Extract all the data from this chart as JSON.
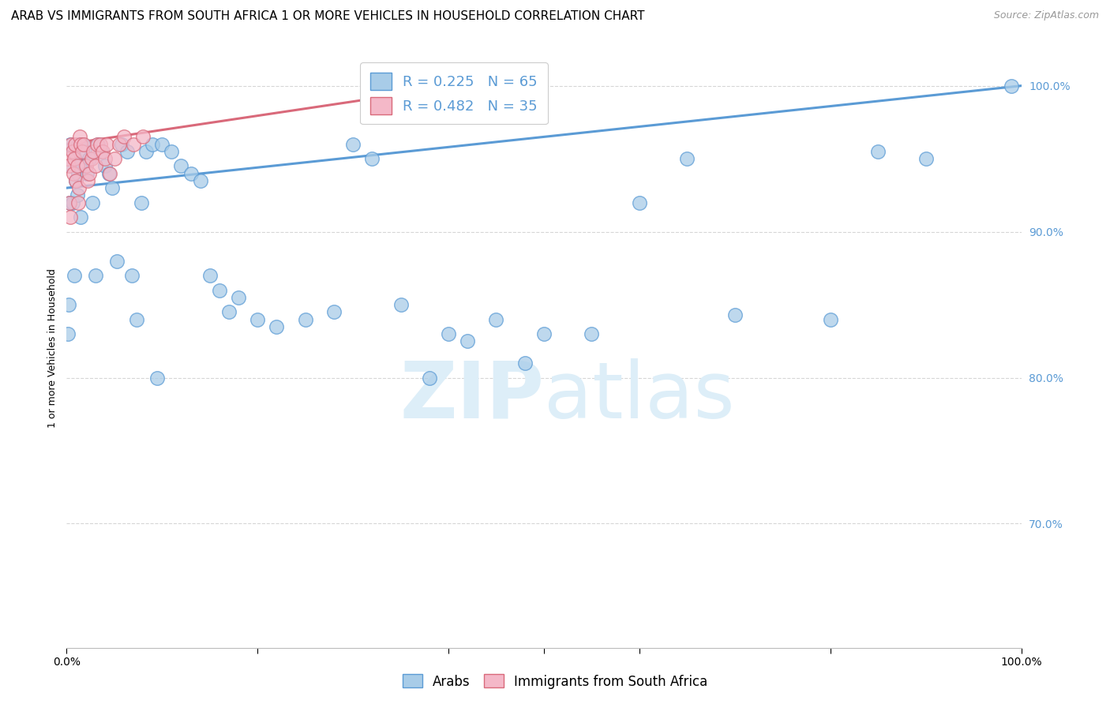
{
  "title": "ARAB VS IMMIGRANTS FROM SOUTH AFRICA 1 OR MORE VEHICLES IN HOUSEHOLD CORRELATION CHART",
  "source": "Source: ZipAtlas.com",
  "ylabel": "1 or more Vehicles in Household",
  "xlim": [
    0.0,
    1.0
  ],
  "ylim": [
    0.615,
    1.025
  ],
  "yticks": [
    0.7,
    0.8,
    0.9,
    1.0
  ],
  "ytick_labels": [
    "70.0%",
    "80.0%",
    "90.0%",
    "100.0%"
  ],
  "legend_blue_r": "R = 0.225",
  "legend_blue_n": "N = 65",
  "legend_pink_r": "R = 0.482",
  "legend_pink_n": "N = 35",
  "blue_color": "#a8cce8",
  "pink_color": "#f4b8c8",
  "line_blue": "#5b9bd5",
  "line_pink": "#d9697a",
  "watermark_color": "#ddeef8",
  "blue_line_start_y": 0.93,
  "blue_line_end_y": 1.0,
  "pink_line_start_y": 0.96,
  "pink_line_end_x": 0.38,
  "pink_line_end_y": 0.997,
  "grid_color": "#cccccc",
  "background_color": "#ffffff",
  "title_fontsize": 11,
  "axis_label_fontsize": 9,
  "tick_fontsize": 10,
  "legend_fontsize": 13,
  "blue_scatter_x": [
    0.001,
    0.002,
    0.003,
    0.004,
    0.005,
    0.006,
    0.007,
    0.008,
    0.009,
    0.01,
    0.011,
    0.012,
    0.013,
    0.014,
    0.015,
    0.017,
    0.019,
    0.021,
    0.024,
    0.027,
    0.03,
    0.033,
    0.036,
    0.04,
    0.044,
    0.048,
    0.053,
    0.058,
    0.063,
    0.068,
    0.073,
    0.078,
    0.083,
    0.09,
    0.095,
    0.1,
    0.11,
    0.12,
    0.13,
    0.14,
    0.15,
    0.16,
    0.17,
    0.18,
    0.2,
    0.22,
    0.25,
    0.28,
    0.3,
    0.32,
    0.35,
    0.38,
    0.4,
    0.42,
    0.45,
    0.48,
    0.5,
    0.55,
    0.6,
    0.65,
    0.7,
    0.8,
    0.85,
    0.9,
    0.99
  ],
  "blue_scatter_y": [
    0.83,
    0.85,
    0.92,
    0.96,
    0.945,
    0.92,
    0.955,
    0.87,
    0.95,
    0.935,
    0.925,
    0.94,
    0.96,
    0.945,
    0.91,
    0.96,
    0.955,
    0.94,
    0.95,
    0.92,
    0.87,
    0.96,
    0.955,
    0.945,
    0.94,
    0.93,
    0.88,
    0.96,
    0.955,
    0.87,
    0.84,
    0.92,
    0.955,
    0.96,
    0.8,
    0.96,
    0.955,
    0.945,
    0.94,
    0.935,
    0.87,
    0.86,
    0.845,
    0.855,
    0.84,
    0.835,
    0.84,
    0.845,
    0.96,
    0.95,
    0.85,
    0.8,
    0.83,
    0.825,
    0.84,
    0.81,
    0.83,
    0.83,
    0.92,
    0.95,
    0.843,
    0.84,
    0.955,
    0.95,
    1.0
  ],
  "pink_scatter_x": [
    0.001,
    0.002,
    0.003,
    0.004,
    0.005,
    0.006,
    0.007,
    0.008,
    0.009,
    0.01,
    0.011,
    0.012,
    0.013,
    0.014,
    0.015,
    0.016,
    0.018,
    0.02,
    0.022,
    0.024,
    0.026,
    0.028,
    0.03,
    0.032,
    0.035,
    0.038,
    0.04,
    0.042,
    0.045,
    0.05,
    0.055,
    0.06,
    0.07,
    0.08,
    0.35
  ],
  "pink_scatter_y": [
    0.95,
    0.945,
    0.92,
    0.91,
    0.96,
    0.955,
    0.94,
    0.95,
    0.96,
    0.935,
    0.945,
    0.92,
    0.93,
    0.965,
    0.96,
    0.955,
    0.96,
    0.945,
    0.935,
    0.94,
    0.95,
    0.955,
    0.945,
    0.96,
    0.96,
    0.955,
    0.95,
    0.96,
    0.94,
    0.95,
    0.96,
    0.965,
    0.96,
    0.965,
    1.0
  ]
}
